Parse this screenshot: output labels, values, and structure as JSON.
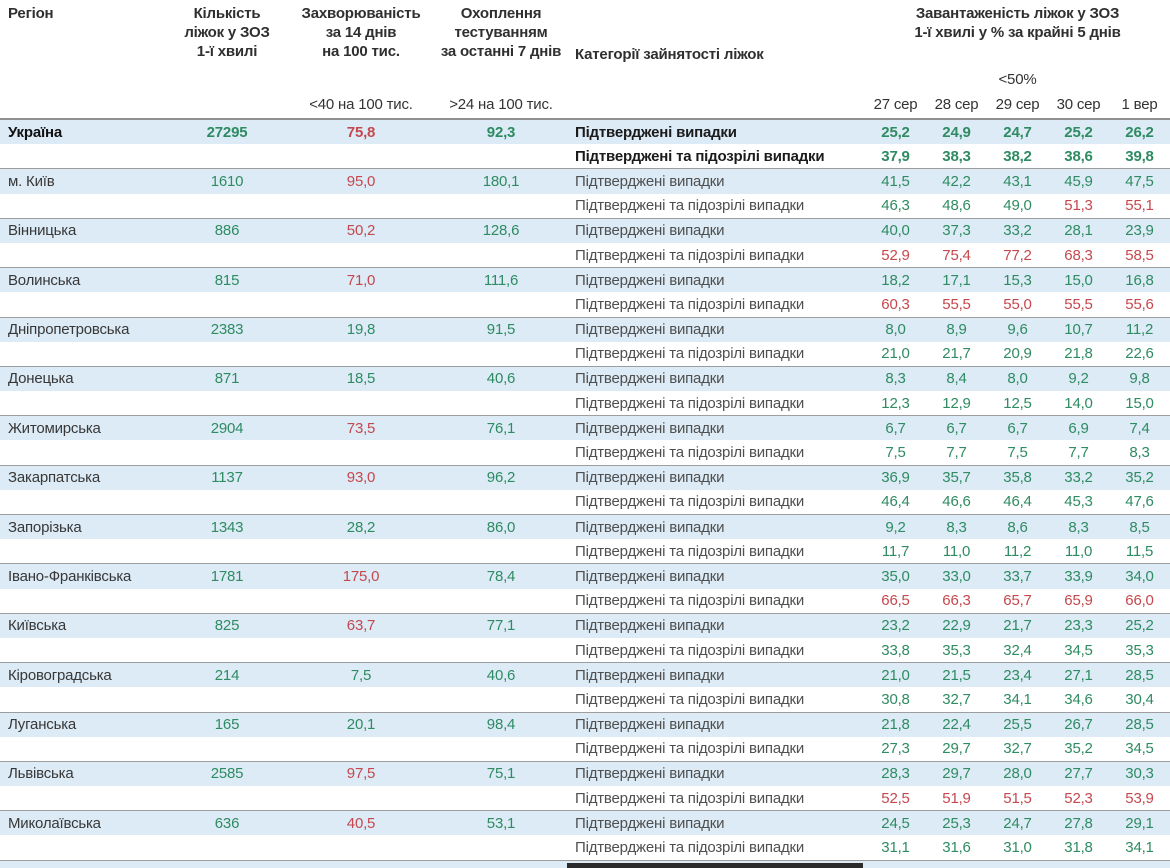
{
  "colors": {
    "positive_value": "#2e8b62",
    "negative_value": "#c5484e",
    "row_band": "#dcebf6",
    "separator": "#9e9e9e",
    "header_text": "#2f2f2f",
    "label_text": "#4f4f4f"
  },
  "chart_data": {
    "type": "table",
    "header": {
      "region": "Регіон",
      "beds": "Кількість\nліжок у ЗОЗ\n1-ї хвилі",
      "incidence": "Захворюваність\nза 14 днів\nна 100 тис.",
      "testing": "Охоплення\nтестуванням\nза останні 7 днів",
      "category": "Категорії зайнятості ліжок",
      "occupancy": "Завантаженість ліжок у ЗОЗ\n1-ї хвилі у % за крайні 5 днів",
      "occupancy_note": "<50%",
      "incidence_threshold": "<40 на 100 тис.",
      "testing_threshold": ">24 на 100 тис.",
      "dates": [
        "27 сер",
        "28 сер",
        "29 сер",
        "30 сер",
        "1 вер"
      ]
    },
    "category_labels": {
      "confirmed": "Підтверджені випадки",
      "suspected": "Підтверджені та підозрілі випадки"
    },
    "value_rules": {
      "occupancy_red_at": 50,
      "incidence_red_at": 40
    },
    "rows": [
      {
        "region": "Україна",
        "bold": true,
        "beds": "27295",
        "incidence": "75,8",
        "testing": "92,3",
        "confirmed": [
          "25,2",
          "24,9",
          "24,7",
          "25,2",
          "26,2"
        ],
        "suspected": [
          "37,9",
          "38,3",
          "38,2",
          "38,6",
          "39,8"
        ]
      },
      {
        "region": "м. Київ",
        "bold": false,
        "beds": "1610",
        "incidence": "95,0",
        "testing": "180,1",
        "confirmed": [
          "41,5",
          "42,2",
          "43,1",
          "45,9",
          "47,5"
        ],
        "suspected": [
          "46,3",
          "48,6",
          "49,0",
          "51,3",
          "55,1"
        ]
      },
      {
        "region": "Вінницька",
        "bold": false,
        "beds": "886",
        "incidence": "50,2",
        "testing": "128,6",
        "confirmed": [
          "40,0",
          "37,3",
          "33,2",
          "28,1",
          "23,9"
        ],
        "suspected": [
          "52,9",
          "75,4",
          "77,2",
          "68,3",
          "58,5"
        ]
      },
      {
        "region": "Волинська",
        "bold": false,
        "beds": "815",
        "incidence": "71,0",
        "testing": "111,6",
        "confirmed": [
          "18,2",
          "17,1",
          "15,3",
          "15,0",
          "16,8"
        ],
        "suspected": [
          "60,3",
          "55,5",
          "55,0",
          "55,5",
          "55,6"
        ]
      },
      {
        "region": "Дніпропетровська",
        "bold": false,
        "beds": "2383",
        "incidence": "19,8",
        "testing": "91,5",
        "confirmed": [
          "8,0",
          "8,9",
          "9,6",
          "10,7",
          "11,2"
        ],
        "suspected": [
          "21,0",
          "21,7",
          "20,9",
          "21,8",
          "22,6"
        ]
      },
      {
        "region": "Донецька",
        "bold": false,
        "beds": "871",
        "incidence": "18,5",
        "testing": "40,6",
        "confirmed": [
          "8,3",
          "8,4",
          "8,0",
          "9,2",
          "9,8"
        ],
        "suspected": [
          "12,3",
          "12,9",
          "12,5",
          "14,0",
          "15,0"
        ]
      },
      {
        "region": "Житомирська",
        "bold": false,
        "beds": "2904",
        "incidence": "73,5",
        "testing": "76,1",
        "confirmed": [
          "6,7",
          "6,7",
          "6,7",
          "6,9",
          "7,4"
        ],
        "suspected": [
          "7,5",
          "7,7",
          "7,5",
          "7,7",
          "8,3"
        ]
      },
      {
        "region": "Закарпатська",
        "bold": false,
        "beds": "1137",
        "incidence": "93,0",
        "testing": "96,2",
        "confirmed": [
          "36,9",
          "35,7",
          "35,8",
          "33,2",
          "35,2"
        ],
        "suspected": [
          "46,4",
          "46,6",
          "46,4",
          "45,3",
          "47,6"
        ]
      },
      {
        "region": "Запорізька",
        "bold": false,
        "beds": "1343",
        "incidence": "28,2",
        "testing": "86,0",
        "confirmed": [
          "9,2",
          "8,3",
          "8,6",
          "8,3",
          "8,5"
        ],
        "suspected": [
          "11,7",
          "11,0",
          "11,2",
          "11,0",
          "11,5"
        ]
      },
      {
        "region": "Івано-Франківська",
        "bold": false,
        "beds": "1781",
        "incidence": "175,0",
        "testing": "78,4",
        "confirmed": [
          "35,0",
          "33,0",
          "33,7",
          "33,9",
          "34,0"
        ],
        "suspected": [
          "66,5",
          "66,3",
          "65,7",
          "65,9",
          "66,0"
        ]
      },
      {
        "region": "Київська",
        "bold": false,
        "beds": "825",
        "incidence": "63,7",
        "testing": "77,1",
        "confirmed": [
          "23,2",
          "22,9",
          "21,7",
          "23,3",
          "25,2"
        ],
        "suspected": [
          "33,8",
          "35,3",
          "32,4",
          "34,5",
          "35,3"
        ]
      },
      {
        "region": "Кіровоградська",
        "bold": false,
        "beds": "214",
        "incidence": "7,5",
        "testing": "40,6",
        "confirmed": [
          "21,0",
          "21,5",
          "23,4",
          "27,1",
          "28,5"
        ],
        "suspected": [
          "30,8",
          "32,7",
          "34,1",
          "34,6",
          "30,4"
        ]
      },
      {
        "region": "Луганська",
        "bold": false,
        "beds": "165",
        "incidence": "20,1",
        "testing": "98,4",
        "confirmed": [
          "21,8",
          "22,4",
          "25,5",
          "26,7",
          "28,5"
        ],
        "suspected": [
          "27,3",
          "29,7",
          "32,7",
          "35,2",
          "34,5"
        ]
      },
      {
        "region": "Львівська",
        "bold": false,
        "beds": "2585",
        "incidence": "97,5",
        "testing": "75,1",
        "confirmed": [
          "28,3",
          "29,7",
          "28,0",
          "27,7",
          "30,3"
        ],
        "suspected": [
          "52,5",
          "51,9",
          "51,5",
          "52,3",
          "53,9"
        ]
      },
      {
        "region": "Миколаївська",
        "bold": false,
        "beds": "636",
        "incidence": "40,5",
        "testing": "53,1",
        "confirmed": [
          "24,5",
          "25,3",
          "24,7",
          "27,8",
          "29,1"
        ],
        "suspected": [
          "31,1",
          "31,6",
          "31,0",
          "31,8",
          "34,1"
        ]
      }
    ]
  }
}
